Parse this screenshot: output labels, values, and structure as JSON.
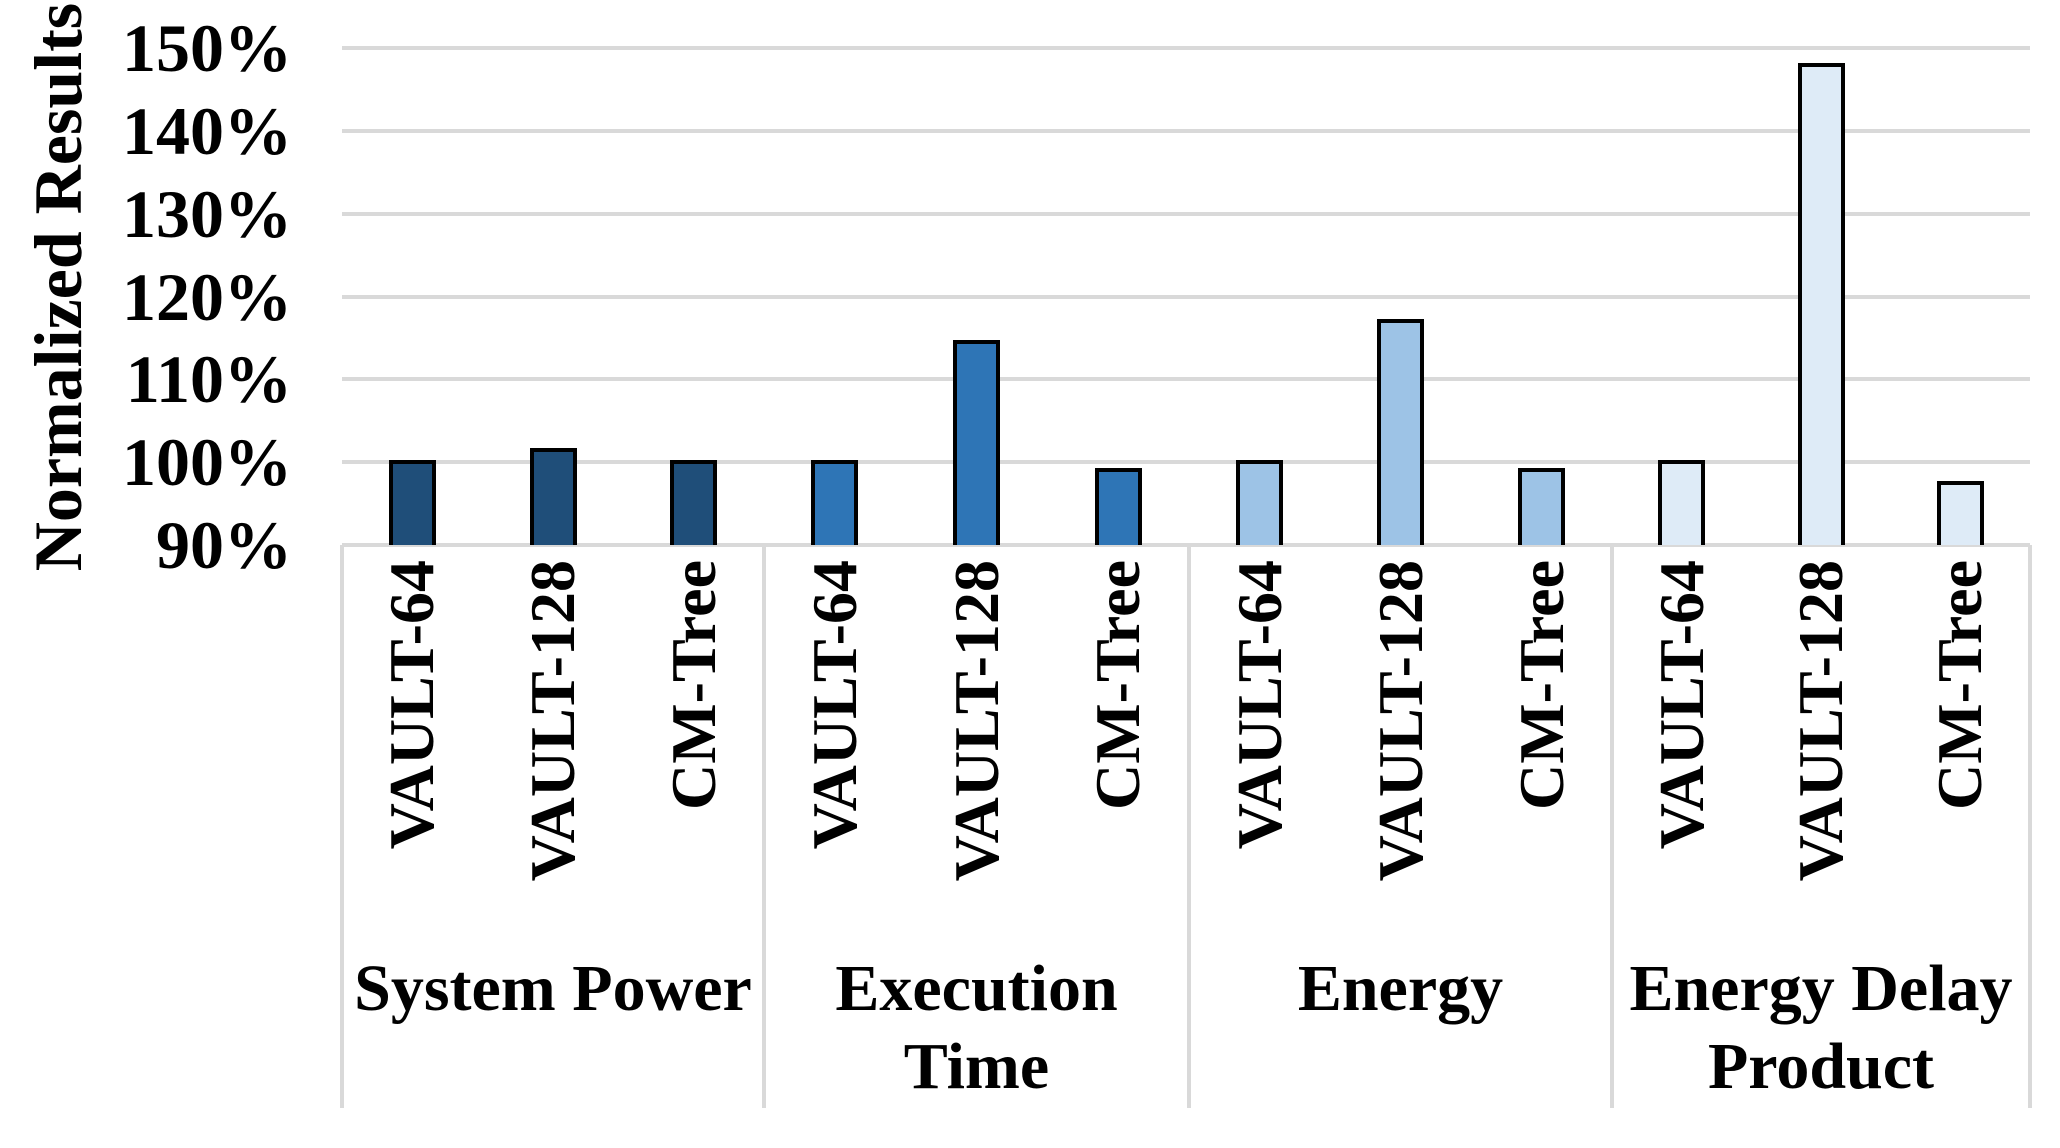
{
  "chart_data": {
    "type": "bar",
    "title": "",
    "ylabel": "Normalized Results",
    "xlabel": "",
    "y_axis": {
      "min": 90,
      "max": 150,
      "step": 10,
      "suffix": "%"
    },
    "grid": true,
    "legend": "none",
    "categories": [
      "VAULT-64",
      "VAULT-128",
      "CM-Tree"
    ],
    "groups": [
      {
        "label_lines": [
          "System Power"
        ],
        "color": "#1F4E79",
        "values": [
          100,
          101.5,
          100
        ]
      },
      {
        "label_lines": [
          "Execution",
          "Time"
        ],
        "color": "#2E75B6",
        "values": [
          100,
          114.5,
          99
        ]
      },
      {
        "label_lines": [
          "Energy"
        ],
        "color": "#9DC3E6",
        "values": [
          100,
          117,
          99
        ]
      },
      {
        "label_lines": [
          "Energy Delay",
          "Product"
        ],
        "color": "#DEEBF7",
        "values": [
          100,
          148,
          97.5
        ]
      }
    ],
    "colors": {
      "background": "#FFFFFF",
      "gridline": "#D9D9D9",
      "bar_border": "#000000",
      "text": "#000000"
    }
  }
}
